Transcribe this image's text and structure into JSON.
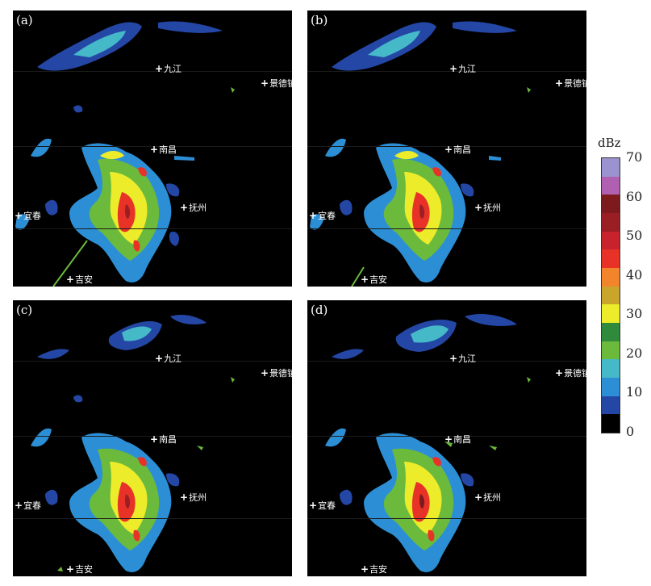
{
  "panels": [
    {
      "label": "(a)"
    },
    {
      "label": "(b)"
    },
    {
      "label": "(c)"
    },
    {
      "label": "(d)"
    }
  ],
  "cities": {
    "jiujiang": "九江",
    "jingdezhen": "景德镇",
    "nanchang": "南昌",
    "yichun": "宜春",
    "fuzhou": "抚州",
    "jian": "吉安"
  },
  "marker": "+",
  "colorbar": {
    "unit": "dBz",
    "ticks": [
      "70",
      "60",
      "50",
      "40",
      "30",
      "20",
      "10",
      "0"
    ],
    "colors": [
      "#9b93cf",
      "#b15fb0",
      "#7d1a1e",
      "#9a1f24",
      "#c8222c",
      "#e83228",
      "#f2842c",
      "#c9a52b",
      "#ecec2a",
      "#2f8a3b",
      "#6bba3c",
      "#46b9c9",
      "#2c8fd6",
      "#2447a6",
      "#000000"
    ]
  }
}
